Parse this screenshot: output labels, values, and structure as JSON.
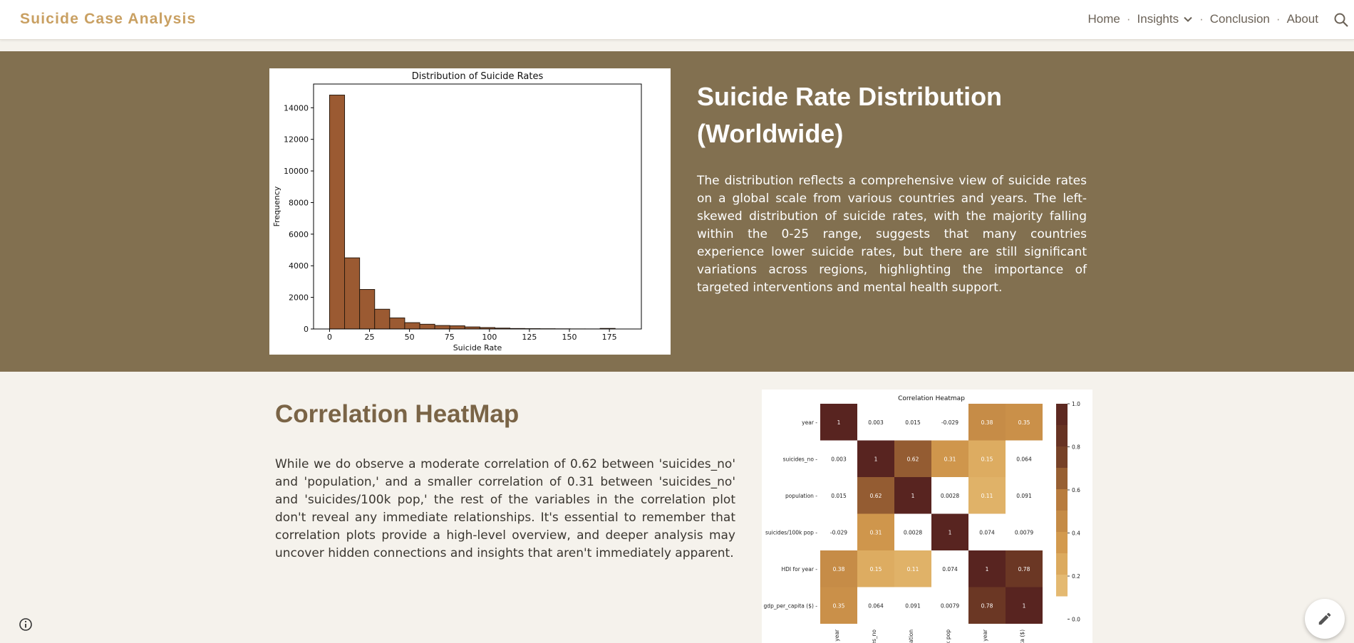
{
  "header": {
    "site_title": "Suicide Case Analysis",
    "nav": [
      "Home",
      "Insights",
      "Conclusion",
      "About"
    ],
    "search_icon": "search-icon",
    "insights_icon": "chevron-down-icon"
  },
  "hero": {
    "title": "Suicide Rate Distribution (Worldwide)",
    "text": "The distribution reflects a comprehensive view of suicide rates on a global scale from various countries and years. The left-skewed distribution of suicide rates, with the majority falling within the 0-25 range, suggests that many countries experience lower suicide rates, but there are still significant variations across regions, highlighting the importance of targeted interventions and mental health support."
  },
  "correlation": {
    "title": "Correlation HeatMap",
    "text": "While we do observe a moderate correlation of 0.62 between 'suicides_no' and 'population,' and a smaller correlation of 0.31 between 'suicides_no' and 'suicides/100k pop,' the rest of the variables in the correlation plot don't reveal any immediate relationships. It's essential to remember that correlation plots provide a high-level overview, and deeper analysis may uncover hidden connections and insights that aren't immediately apparent."
  },
  "colors": {
    "band": "#827050",
    "accent": "#c9a062",
    "bar": "#9b5a32"
  },
  "chart_data": [
    {
      "type": "bar",
      "title": "Distribution of Suicide Rates",
      "xlabel": "Suicide Rate",
      "ylabel": "Frequency",
      "bin_edges": [
        0,
        9.4,
        18.8,
        28.2,
        37.6,
        47,
        56.4,
        65.8,
        75.2,
        84.6,
        94,
        103.4,
        112.8,
        122.2,
        131.6,
        141,
        150.4,
        159.8,
        169.2,
        178.6
      ],
      "values": [
        14800,
        4500,
        2500,
        1250,
        700,
        400,
        300,
        220,
        200,
        130,
        90,
        55,
        30,
        20,
        15,
        10,
        5,
        4,
        35
      ],
      "xlim": [
        -10,
        195
      ],
      "ylim": [
        0,
        15500
      ],
      "xticks": [
        0,
        25,
        50,
        75,
        100,
        125,
        150,
        175
      ],
      "yticks": [
        0,
        2000,
        4000,
        6000,
        8000,
        10000,
        12000,
        14000
      ],
      "grid": false
    },
    {
      "type": "heatmap",
      "title": "Correlation Heatmap",
      "labels": [
        "year",
        "suicides_no",
        "population",
        "suicides/100k pop",
        "HDI for year",
        "gdp_per_capita ($)"
      ],
      "x_tick_labels": [
        "year",
        "es_no",
        "lation",
        "k pop",
        "r year",
        "ta ($)"
      ],
      "values": [
        [
          "1",
          "0.003",
          "0.015",
          "-0.029",
          "0.38",
          "0.35"
        ],
        [
          "0.003",
          "1",
          "0.62",
          "0.31",
          "0.15",
          "0.064"
        ],
        [
          "0.015",
          "0.62",
          "1",
          "0.0028",
          "0.11",
          "0.091"
        ],
        [
          "-0.029",
          "0.31",
          "0.0028",
          "1",
          "0.074",
          "0.0079"
        ],
        [
          "0.38",
          "0.15",
          "0.11",
          "0.074",
          "1",
          "0.78"
        ],
        [
          "0.35",
          "0.064",
          "0.091",
          "0.0079",
          "0.78",
          "1"
        ]
      ],
      "colorbar_ticks": [
        "1.0",
        "0.8",
        "0.6",
        "0.4",
        "0.2",
        "0.0"
      ]
    }
  ]
}
